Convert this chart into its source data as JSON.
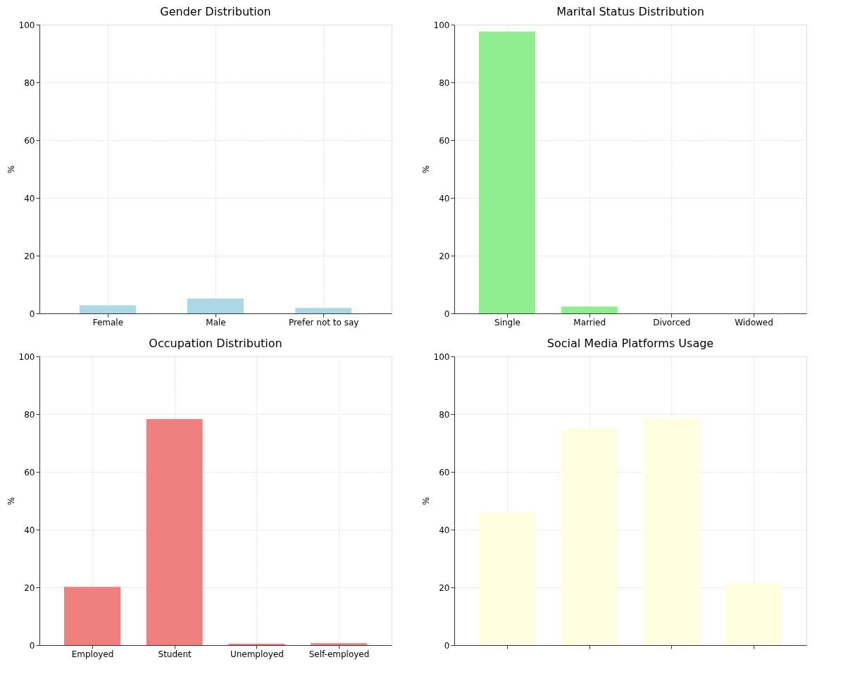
{
  "chart_data": [
    {
      "type": "bar",
      "title": "Gender Distribution",
      "ylabel": "%",
      "categories": [
        "Female",
        "Male",
        "Prefer not to say"
      ],
      "values": [
        2.8,
        5.2,
        1.9
      ],
      "color": "#add8e6",
      "ylim": [
        0,
        100
      ],
      "yticks": [
        0,
        20,
        40,
        60,
        80,
        100
      ],
      "grid": true
    },
    {
      "type": "bar",
      "title": "Marital Status Distribution",
      "ylabel": "%",
      "categories": [
        "Single",
        "Married",
        "Divorced",
        "Widowed"
      ],
      "values": [
        97.6,
        2.4,
        0,
        0
      ],
      "color": "#90ee90",
      "ylim": [
        0,
        100
      ],
      "yticks": [
        0,
        20,
        40,
        60,
        80,
        100
      ],
      "grid": true
    },
    {
      "type": "bar",
      "title": "Occupation Distribution",
      "ylabel": "%",
      "categories": [
        "Employed",
        "Student",
        "Unemployed",
        "Self-employed"
      ],
      "values": [
        20.2,
        78.3,
        0.5,
        0.7
      ],
      "color": "#f08080",
      "ylim": [
        0,
        100
      ],
      "yticks": [
        0,
        20,
        40,
        60,
        80,
        100
      ],
      "grid": true
    },
    {
      "type": "bar",
      "title": "Social Media Platforms Usage",
      "ylabel": "%",
      "categories": [
        null,
        null,
        null,
        null
      ],
      "values": [
        46.0,
        74.9,
        78.4,
        21.4
      ],
      "color": "#ffffe0",
      "ylim": [
        0,
        100
      ],
      "yticks": [
        0,
        20,
        40,
        60,
        80,
        100
      ],
      "grid": true
    }
  ]
}
